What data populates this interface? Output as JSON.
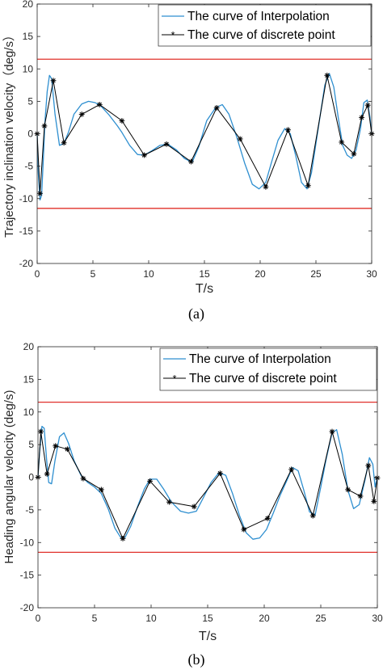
{
  "chart_data": [
    {
      "type": "line",
      "panel_label": "(a)",
      "xlabel": "T/s",
      "ylabel": "Trajectory inclination velocity（deg/s）",
      "xlim": [
        0,
        30
      ],
      "ylim": [
        -20,
        20
      ],
      "xticks": [
        "0",
        "5",
        "10",
        "15",
        "20",
        "25",
        "30"
      ],
      "yticks": [
        "20",
        "15",
        "10",
        "5",
        "0",
        "-5",
        "-10",
        "-15",
        "-20"
      ],
      "grid": false,
      "legend_position": "top-right",
      "limit_lines": [
        11.5,
        -11.5
      ],
      "limit_color": "#e0302a",
      "series": [
        {
          "name": "The curve of Interpolation",
          "color": "#2e8fd0",
          "marker": "none",
          "x": [
            0,
            0.1,
            0.25,
            0.4,
            0.55,
            0.7,
            0.9,
            1.1,
            1.3,
            1.6,
            2.0,
            2.4,
            2.8,
            3.3,
            4.0,
            4.6,
            5.2,
            5.7,
            6.4,
            7.2,
            7.6,
            8.3,
            9.0,
            9.6,
            10.3,
            11.0,
            11.7,
            12.5,
            13.2,
            13.9,
            14.5,
            15.2,
            16.0,
            16.6,
            17.2,
            17.9,
            18.6,
            19.3,
            19.9,
            20.5,
            21.0,
            21.6,
            22.2,
            22.7,
            23.2,
            23.7,
            24.2,
            24.6,
            25.0,
            25.4,
            25.8,
            26.2,
            26.6,
            27.0,
            27.4,
            27.8,
            28.2,
            28.6,
            29.0,
            29.3,
            29.6,
            29.85,
            30.0
          ],
          "y": [
            0,
            -6,
            -10.2,
            -9.5,
            -4,
            2,
            6.5,
            9,
            8.5,
            3,
            -1.8,
            -1.5,
            0.2,
            3,
            4.6,
            5,
            4.8,
            4.3,
            3,
            1.2,
            0.2,
            -1.8,
            -3.2,
            -3.3,
            -2.6,
            -1.8,
            -1.6,
            -2.5,
            -3.8,
            -4.4,
            -2,
            2,
            4,
            4.5,
            3,
            -0.5,
            -4.5,
            -7.8,
            -8.5,
            -7.5,
            -4.5,
            -1,
            0.8,
            0,
            -3.5,
            -7.5,
            -8.5,
            -6,
            -1.5,
            3,
            7.5,
            9.3,
            7.2,
            2.5,
            -1.8,
            -3.3,
            -3.8,
            -2.5,
            0.8,
            4.8,
            5.2,
            2.5,
            0
          ]
        },
        {
          "name": "The curve of discrete point",
          "color": "#000000",
          "marker": "asterisk",
          "x": [
            0,
            0.25,
            0.65,
            1.45,
            2.4,
            4.0,
            5.6,
            7.6,
            9.6,
            11.6,
            13.8,
            16.1,
            18.2,
            20.5,
            22.5,
            24.3,
            26.0,
            27.3,
            28.4,
            29.1,
            29.65,
            30.0
          ],
          "y": [
            0,
            -9.2,
            1.2,
            8.2,
            -1.4,
            3,
            4.5,
            2,
            -3.3,
            -1.6,
            -4.3,
            4,
            -0.8,
            -8.2,
            0.6,
            -8,
            9,
            -1.3,
            -3.1,
            2.5,
            4.4,
            0
          ]
        }
      ]
    },
    {
      "type": "line",
      "panel_label": "(b)",
      "xlabel": "T/s",
      "ylabel": "Heading angular velocity (deg/s)",
      "xlim": [
        0,
        30
      ],
      "ylim": [
        -20,
        20
      ],
      "xticks": [
        "0",
        "5",
        "10",
        "15",
        "20",
        "25",
        "30"
      ],
      "yticks": [
        "20",
        "15",
        "10",
        "5",
        "0",
        "-5",
        "-10",
        "-15",
        "-20"
      ],
      "grid": false,
      "legend_position": "top-right",
      "limit_lines": [
        11.5,
        -11.5
      ],
      "limit_color": "#e0302a",
      "series": [
        {
          "name": "The curve of Interpolation",
          "color": "#2e8fd0",
          "marker": "none",
          "x": [
            0,
            0.15,
            0.35,
            0.55,
            0.75,
            0.95,
            1.2,
            1.5,
            1.9,
            2.3,
            2.7,
            3.2,
            3.8,
            4.4,
            5.0,
            5.6,
            6.2,
            6.8,
            7.3,
            7.7,
            8.2,
            8.8,
            9.4,
            9.9,
            10.5,
            11.1,
            11.8,
            12.6,
            13.3,
            14.0,
            14.6,
            15.3,
            16.0,
            16.6,
            17.2,
            17.8,
            18.4,
            19.0,
            19.6,
            20.2,
            20.8,
            21.4,
            22.0,
            22.5,
            23.0,
            23.5,
            24.0,
            24.5,
            25.0,
            25.5,
            26.0,
            26.4,
            26.9,
            27.4,
            27.9,
            28.4,
            28.9,
            29.3,
            29.6,
            29.8,
            30.0
          ],
          "y": [
            0,
            4,
            7.8,
            7.5,
            3,
            -0.8,
            -1,
            2.5,
            6.2,
            6.8,
            5.2,
            2.5,
            0.3,
            -0.8,
            -1.5,
            -2.5,
            -4.8,
            -7.8,
            -9.2,
            -9.2,
            -7.5,
            -4.5,
            -1.8,
            -0.3,
            -0.3,
            -1.8,
            -3.8,
            -5.2,
            -5.5,
            -5.2,
            -3.2,
            -0.8,
            0.7,
            0.3,
            -2.5,
            -5.8,
            -8.5,
            -9.5,
            -9.3,
            -8,
            -5.5,
            -2.8,
            -0.5,
            1.5,
            1,
            -2,
            -5.3,
            -5.8,
            -1.5,
            3,
            6.8,
            7.3,
            3.5,
            -2,
            -4.8,
            -4.2,
            -0.5,
            3,
            2,
            -1.5,
            0
          ]
        },
        {
          "name": "The curve of discrete point",
          "color": "#000000",
          "marker": "asterisk",
          "x": [
            0,
            0.25,
            0.8,
            1.55,
            2.6,
            4.0,
            5.6,
            7.5,
            9.9,
            11.6,
            13.8,
            16.1,
            18.2,
            20.3,
            22.4,
            24.3,
            26.0,
            27.4,
            28.5,
            29.2,
            29.7,
            30.0
          ],
          "y": [
            0,
            7,
            0.5,
            4.8,
            4.3,
            -0.2,
            -1.9,
            -9.4,
            -0.6,
            -3.8,
            -4.5,
            0.6,
            -8,
            -6.3,
            1.2,
            -5.9,
            7,
            -1.9,
            -2.9,
            1.8,
            -3.7,
            -0.1
          ]
        }
      ]
    }
  ]
}
